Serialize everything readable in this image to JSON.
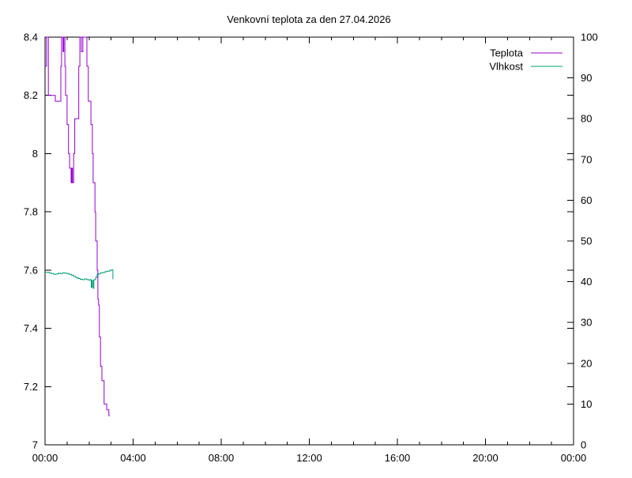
{
  "page": {
    "background": "#ffffff"
  },
  "chart_data": {
    "type": "line",
    "title": "Venkovní teplota za den 27.04.2026",
    "grid": "off",
    "legend_position": "top-right-inside",
    "x_axis": {
      "unit": "time HH:MM",
      "range_minutes": [
        0,
        1440
      ],
      "major_tick_minutes": [
        0,
        240,
        480,
        720,
        960,
        1200,
        1440
      ],
      "major_tick_labels": [
        "00:00",
        "04:00",
        "08:00",
        "12:00",
        "16:00",
        "20:00",
        "00:00"
      ],
      "minor_tick_interval_minutes": 60
    },
    "y_left_axis": {
      "range": [
        7.0,
        8.4
      ],
      "tick_step": 0.2,
      "tick_labels": [
        "7",
        "7.2",
        "7.4",
        "7.6",
        "7.8",
        "8",
        "8.2",
        "8.4"
      ]
    },
    "y_right_axis": {
      "range": [
        0,
        100
      ],
      "tick_step": 10,
      "tick_labels": [
        "0",
        "10",
        "20",
        "30",
        "40",
        "50",
        "60",
        "70",
        "80",
        "90",
        "100"
      ]
    },
    "series": [
      {
        "id": "temperature",
        "name": "Teplota",
        "axis": "left",
        "color": "#9400d3",
        "style": "steps",
        "points_unit": [
          "minutes_from_midnight",
          "degC_left_axis"
        ],
        "points": [
          [
            0,
            8.3
          ],
          [
            4,
            8.4
          ],
          [
            9,
            8.2
          ],
          [
            28,
            8.18
          ],
          [
            43,
            8.3
          ],
          [
            45,
            8.4
          ],
          [
            49,
            8.35
          ],
          [
            51,
            8.4
          ],
          [
            54,
            8.3
          ],
          [
            56,
            8.2
          ],
          [
            60,
            8.1
          ],
          [
            64,
            8.0
          ],
          [
            67,
            7.95
          ],
          [
            71,
            7.9
          ],
          [
            73,
            7.95
          ],
          [
            75,
            7.9
          ],
          [
            78,
            8.0
          ],
          [
            81,
            8.12
          ],
          [
            92,
            8.3
          ],
          [
            95,
            8.4
          ],
          [
            99,
            8.35
          ],
          [
            103,
            8.4
          ],
          [
            114,
            8.3
          ],
          [
            118,
            8.18
          ],
          [
            125,
            8.1
          ],
          [
            129,
            8.0
          ],
          [
            131,
            7.9
          ],
          [
            136,
            7.8
          ],
          [
            138,
            7.7
          ],
          [
            142,
            7.6
          ],
          [
            144,
            7.5
          ],
          [
            146,
            7.48
          ],
          [
            148,
            7.37
          ],
          [
            151,
            7.27
          ],
          [
            155,
            7.22
          ],
          [
            161,
            7.14
          ],
          [
            168,
            7.12
          ],
          [
            174,
            7.1
          ],
          [
            177,
            7.1
          ]
        ]
      },
      {
        "id": "humidity",
        "name": "Vlhkost",
        "axis": "right",
        "color": "#009e73",
        "style": "steps",
        "points_unit": [
          "minutes_from_midnight",
          "percent_right_axis"
        ],
        "points": [
          [
            0,
            42.3
          ],
          [
            6,
            42.3
          ],
          [
            12,
            42.1
          ],
          [
            18,
            42.0
          ],
          [
            24,
            41.8
          ],
          [
            30,
            41.9
          ],
          [
            36,
            42.1
          ],
          [
            42,
            42.0
          ],
          [
            48,
            42.2
          ],
          [
            54,
            42.1
          ],
          [
            60,
            42.0
          ],
          [
            66,
            41.8
          ],
          [
            72,
            41.6
          ],
          [
            78,
            41.3
          ],
          [
            84,
            41.0
          ],
          [
            90,
            40.8
          ],
          [
            96,
            40.6
          ],
          [
            102,
            40.5
          ],
          [
            108,
            40.7
          ],
          [
            114,
            40.5
          ],
          [
            120,
            40.4
          ],
          [
            124,
            40.5
          ],
          [
            126,
            38.6
          ],
          [
            128,
            40.3
          ],
          [
            131,
            38.4
          ],
          [
            133,
            40.5
          ],
          [
            138,
            41.1
          ],
          [
            142,
            41.7
          ],
          [
            146,
            42.0
          ],
          [
            152,
            42.2
          ],
          [
            158,
            42.3
          ],
          [
            164,
            42.5
          ],
          [
            170,
            42.6
          ],
          [
            176,
            42.8
          ],
          [
            181,
            42.9
          ],
          [
            184,
            42.9
          ],
          [
            185,
            40.6
          ]
        ]
      }
    ]
  }
}
